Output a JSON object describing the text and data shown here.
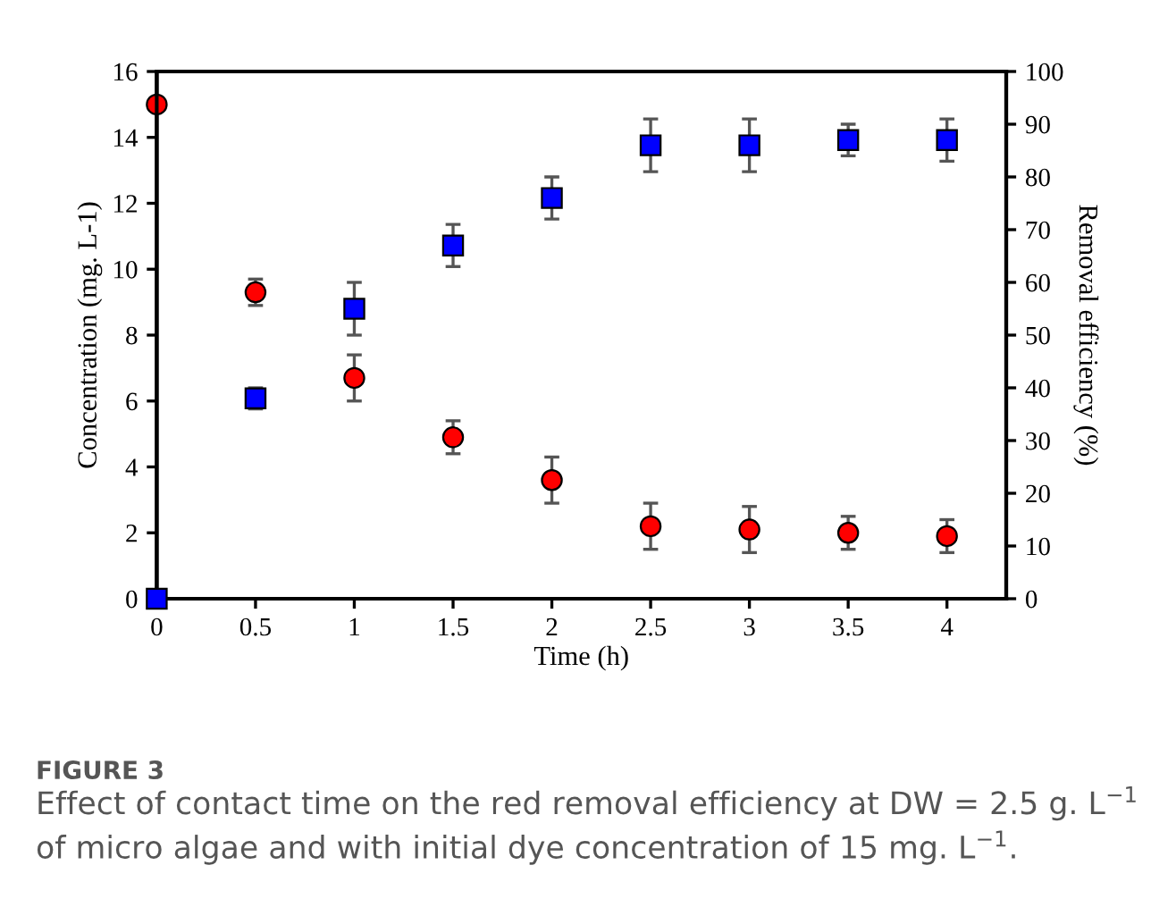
{
  "chart_data": {
    "type": "scatter",
    "xlabel": "Time (h)",
    "ylabel": "Concentration (mg. L-1)",
    "y2label": "Removal efficiency (%)",
    "x": [
      0,
      0.5,
      1,
      1.5,
      2,
      2.5,
      3,
      3.5,
      4
    ],
    "series": [
      {
        "color": "#ff0000",
        "marker": "circle",
        "values": [
          15,
          9.3,
          6.7,
          4.9,
          3.6,
          2.2,
          2.1,
          2.0,
          1.9
        ],
        "errors": [
          null,
          0.4,
          0.7,
          0.5,
          0.7,
          0.7,
          0.7,
          0.5,
          0.5
        ]
      },
      {
        "color": "#0000ff",
        "marker": "square",
        "axis": "y2",
        "values": [
          0,
          38,
          55,
          67,
          76,
          86,
          86,
          87,
          87
        ],
        "errors": [
          null,
          2,
          5,
          4,
          4,
          5,
          5,
          3,
          4
        ]
      }
    ],
    "xlim": [
      0,
      4.3
    ],
    "xticks": [
      0,
      0.5,
      1,
      1.5,
      2,
      2.5,
      3,
      3.5,
      4
    ],
    "ylim": [
      0,
      16
    ],
    "yticks": [
      0,
      2,
      4,
      6,
      8,
      10,
      12,
      14,
      16
    ],
    "y2lim": [
      0,
      100
    ],
    "y2ticks": [
      0,
      10,
      20,
      30,
      40,
      50,
      60,
      70,
      80,
      90,
      100
    ],
    "grid": false,
    "legend": false,
    "annotations": [
      "FIGURE 3",
      "Effect of contact time on the red removal efficiency at DW = 2.5 g. L$^{−1}$ of micro algae and with initial dye concentration of 15 mg. L$^{−1}$."
    ]
  }
}
